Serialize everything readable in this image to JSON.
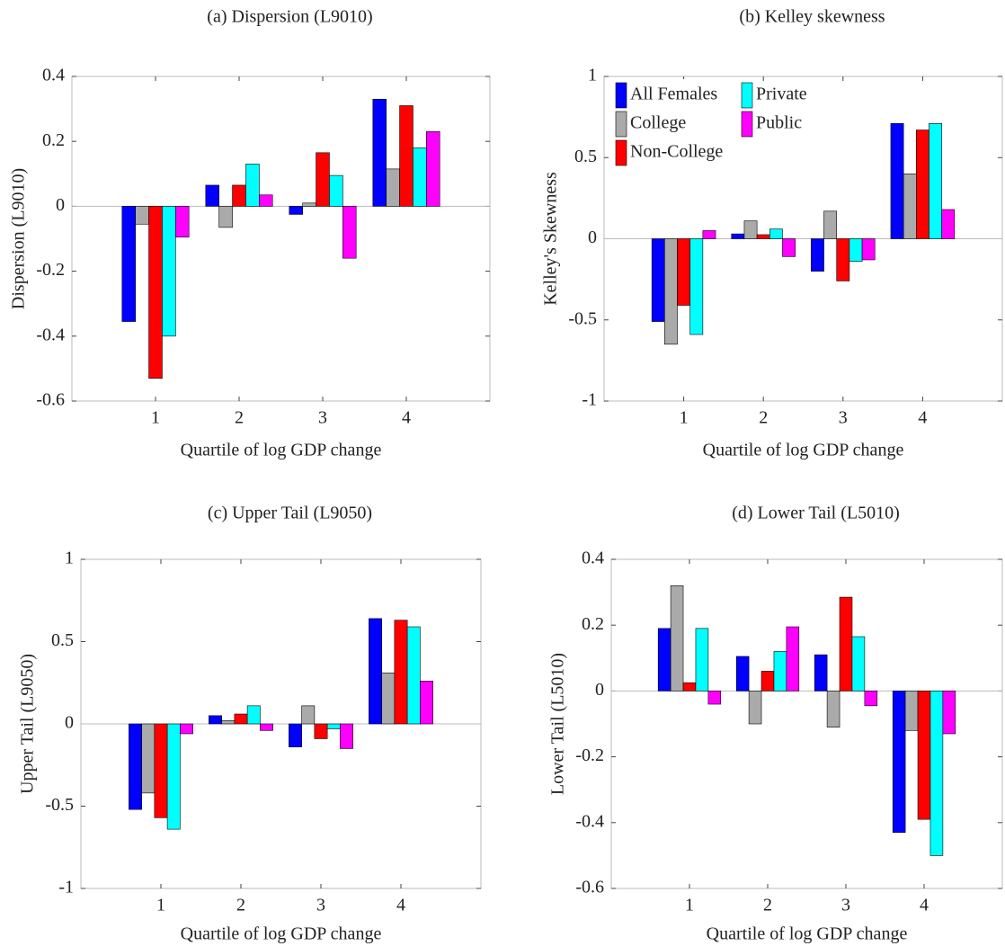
{
  "chart_data": [
    {
      "type": "bar",
      "title": "(a) Dispersion (L9010)",
      "ylabel": "Dispersion (L9010)",
      "xlabel": "Quartile of log GDP change",
      "x": [
        1,
        2,
        3,
        4
      ],
      "xlim": [
        0,
        5
      ],
      "xticks": [
        1,
        2,
        3,
        4
      ],
      "ylim": [
        -0.6,
        0.4
      ],
      "yticks": [
        -0.6,
        -0.4,
        -0.2,
        0,
        0.2,
        0.4
      ],
      "series": [
        {
          "color": "#0000ff",
          "values": [
            -0.355,
            0.065,
            -0.025,
            0.33
          ]
        },
        {
          "color": "#aaaaaa",
          "values": [
            -0.055,
            -0.065,
            0.01,
            0.115
          ]
        },
        {
          "color": "#ff0000",
          "values": [
            -0.53,
            0.065,
            0.165,
            0.31
          ]
        },
        {
          "color": "#00ffff",
          "values": [
            -0.4,
            0.13,
            0.095,
            0.18
          ]
        },
        {
          "color": "#ff00ff",
          "values": [
            -0.095,
            0.035,
            -0.16,
            0.23
          ]
        }
      ]
    },
    {
      "type": "bar",
      "title": "(b) Kelley skewness",
      "ylabel": "Kelley's Skewness",
      "xlabel": "Quartile of log GDP change",
      "x": [
        1,
        2,
        3,
        4
      ],
      "xlim": [
        0,
        5
      ],
      "xticks": [
        1,
        2,
        3,
        4
      ],
      "ylim": [
        -1,
        1
      ],
      "yticks": [
        -1,
        -0.5,
        0,
        0.5,
        1
      ],
      "legend_loc": "upper left",
      "series": [
        {
          "name": "All Females",
          "color": "#0000ff",
          "values": [
            -0.51,
            0.03,
            -0.2,
            0.71
          ]
        },
        {
          "name": "College",
          "color": "#aaaaaa",
          "values": [
            -0.65,
            0.11,
            0.17,
            0.4
          ]
        },
        {
          "name": "Non-College",
          "color": "#ff0000",
          "values": [
            -0.41,
            0.025,
            -0.26,
            0.67
          ]
        },
        {
          "name": "Private",
          "color": "#00ffff",
          "values": [
            -0.59,
            0.06,
            -0.14,
            0.71
          ]
        },
        {
          "name": "Public",
          "color": "#ff00ff",
          "values": [
            0.05,
            -0.11,
            -0.13,
            0.18
          ]
        }
      ]
    },
    {
      "type": "bar",
      "title": "(c) Upper Tail (L9050)",
      "ylabel": "Upper Tail (L9050)",
      "xlabel": "Quartile of log GDP change",
      "x": [
        1,
        2,
        3,
        4
      ],
      "xlim": [
        0,
        5
      ],
      "xticks": [
        1,
        2,
        3,
        4
      ],
      "ylim": [
        -1,
        1
      ],
      "yticks": [
        -1,
        -0.5,
        0,
        0.5,
        1
      ],
      "series": [
        {
          "color": "#0000ff",
          "values": [
            -0.52,
            0.05,
            -0.14,
            0.64
          ]
        },
        {
          "color": "#aaaaaa",
          "values": [
            -0.42,
            0.02,
            0.11,
            0.31
          ]
        },
        {
          "color": "#ff0000",
          "values": [
            -0.57,
            0.06,
            -0.09,
            0.63
          ]
        },
        {
          "color": "#00ffff",
          "values": [
            -0.64,
            0.11,
            -0.03,
            0.59
          ]
        },
        {
          "color": "#ff00ff",
          "values": [
            -0.06,
            -0.04,
            -0.15,
            0.26
          ]
        }
      ]
    },
    {
      "type": "bar",
      "title": "(d) Lower Tail (L5010)",
      "ylabel": "Lower Tail (L5010)",
      "xlabel": "Quartile of log GDP change",
      "x": [
        1,
        2,
        3,
        4
      ],
      "xlim": [
        0,
        5
      ],
      "xticks": [
        1,
        2,
        3,
        4
      ],
      "ylim": [
        -0.6,
        0.4
      ],
      "yticks": [
        -0.6,
        -0.4,
        -0.2,
        0,
        0.2,
        0.4
      ],
      "series": [
        {
          "color": "#0000ff",
          "values": [
            0.19,
            0.105,
            0.11,
            -0.43
          ]
        },
        {
          "color": "#aaaaaa",
          "values": [
            0.32,
            -0.1,
            -0.11,
            -0.12
          ]
        },
        {
          "color": "#ff0000",
          "values": [
            0.025,
            0.06,
            0.285,
            -0.39
          ]
        },
        {
          "color": "#00ffff",
          "values": [
            0.19,
            0.12,
            0.165,
            -0.5
          ]
        },
        {
          "color": "#ff00ff",
          "values": [
            -0.04,
            0.195,
            -0.045,
            -0.13
          ]
        }
      ]
    }
  ]
}
